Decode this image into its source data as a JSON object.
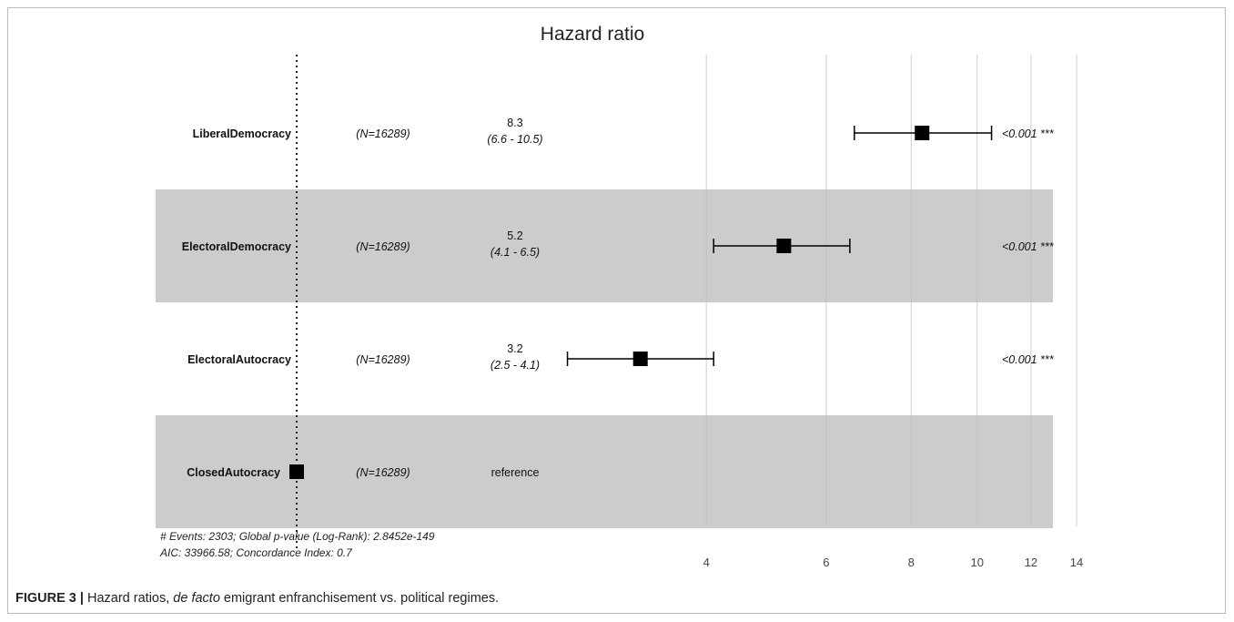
{
  "caption": {
    "label": "FIGURE 3 |",
    "text_before": " Hazard ratios, ",
    "text_italic": "de facto",
    "text_after": " emigrant enfranchisement vs. political regimes."
  },
  "chart_data": {
    "type": "forest",
    "title": "Hazard ratio",
    "x_scale": "log",
    "xlim": [
      1,
      14
    ],
    "x_ticks": [
      4,
      6,
      8,
      10,
      12,
      14
    ],
    "reference_line": 1,
    "grid": "vertical",
    "rows": [
      {
        "label": "LiberalDemocracy",
        "n": "(N=16289)",
        "hr": 8.3,
        "ci_low": 6.6,
        "ci_high": 10.5,
        "estimate_text": "8.3",
        "ci_text": "(6.6 - 10.5)",
        "p_text": "<0.001 ***",
        "shaded": false
      },
      {
        "label": "ElectoralDemocracy",
        "n": "(N=16289)",
        "hr": 5.2,
        "ci_low": 4.1,
        "ci_high": 6.5,
        "estimate_text": "5.2",
        "ci_text": "(4.1 - 6.5)",
        "p_text": "<0.001 ***",
        "shaded": true
      },
      {
        "label": "ElectoralAutocracy",
        "n": "(N=16289)",
        "hr": 3.2,
        "ci_low": 2.5,
        "ci_high": 4.1,
        "estimate_text": "3.2",
        "ci_text": "(2.5 - 4.1)",
        "p_text": "<0.001 ***",
        "shaded": false
      },
      {
        "label": "ClosedAutocracy",
        "n": "(N=16289)",
        "hr": 1,
        "reference": true,
        "estimate_text": "reference",
        "shaded": true
      }
    ],
    "footnote_lines": [
      "# Events: 2303; Global p-value (Log-Rank): 2.8452e-149",
      "AIC: 33966.58; Concordance Index: 0.7"
    ]
  }
}
